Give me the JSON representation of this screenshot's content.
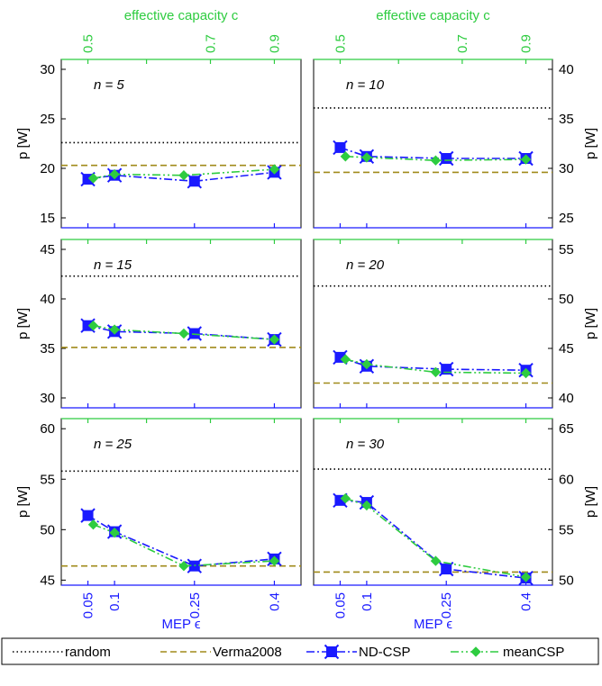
{
  "colors": {
    "axis_blue": "#1a1aff",
    "axis_green": "#2ecc40",
    "random": "#000000",
    "verma": "#a08a1a",
    "ndcsp": "#1a1aff",
    "meancsp": "#2ecc40"
  },
  "top_axis_label_left": "effective capacity c",
  "top_axis_label_right": "effective capacity c",
  "bottom_axis_label_left": "MEP ϵ",
  "bottom_axis_label_right": "MEP ϵ",
  "y_axis_label": "p [W]",
  "legend": [
    {
      "name": "random",
      "key": "random",
      "style": "dotted"
    },
    {
      "name": "Verma2008",
      "key": "verma",
      "style": "dashed"
    },
    {
      "name": "ND-CSP",
      "key": "ndcsp",
      "style": "dashdot-square"
    },
    {
      "name": "meanCSP",
      "key": "meancsp",
      "style": "dashdotdot-diamond"
    }
  ],
  "chart_data": [
    {
      "title": "n = 5",
      "ylim": [
        14,
        31
      ],
      "yticks": [
        15,
        20,
        25,
        30
      ],
      "random": 22.6,
      "verma": 20.3,
      "series": [
        {
          "name": "ND-CSP",
          "x": [
            0.05,
            0.1,
            0.25,
            0.4
          ],
          "y": [
            18.9,
            19.3,
            18.7,
            19.6
          ]
        },
        {
          "name": "meanCSP",
          "x": [
            0.06,
            0.1,
            0.23,
            0.4
          ],
          "y": [
            19.0,
            19.4,
            19.3,
            19.9
          ]
        }
      ]
    },
    {
      "title": "n = 10",
      "ylim": [
        24,
        41
      ],
      "yticks": [
        25,
        30,
        35,
        40
      ],
      "random": 36.1,
      "verma": 29.6,
      "series": [
        {
          "name": "ND-CSP",
          "x": [
            0.05,
            0.1,
            0.25,
            0.4
          ],
          "y": [
            32.1,
            31.2,
            31.0,
            31.0
          ]
        },
        {
          "name": "meanCSP",
          "x": [
            0.06,
            0.1,
            0.23,
            0.4
          ],
          "y": [
            31.2,
            31.1,
            30.8,
            30.9
          ]
        }
      ]
    },
    {
      "title": "n = 15",
      "ylim": [
        29,
        46
      ],
      "yticks": [
        30,
        35,
        40,
        45
      ],
      "random": 42.3,
      "verma": 35.1,
      "series": [
        {
          "name": "ND-CSP",
          "x": [
            0.05,
            0.1,
            0.25,
            0.4
          ],
          "y": [
            37.3,
            36.7,
            36.5,
            35.9
          ]
        },
        {
          "name": "meanCSP",
          "x": [
            0.06,
            0.1,
            0.23,
            0.4
          ],
          "y": [
            37.3,
            36.9,
            36.5,
            35.9
          ]
        }
      ]
    },
    {
      "title": "n = 20",
      "ylim": [
        39,
        56
      ],
      "yticks": [
        40,
        45,
        50,
        55
      ],
      "random": 51.3,
      "verma": 41.5,
      "series": [
        {
          "name": "ND-CSP",
          "x": [
            0.05,
            0.1,
            0.25,
            0.4
          ],
          "y": [
            44.1,
            43.2,
            42.9,
            42.8
          ]
        },
        {
          "name": "meanCSP",
          "x": [
            0.06,
            0.1,
            0.23,
            0.4
          ],
          "y": [
            43.9,
            43.4,
            42.6,
            42.5
          ]
        }
      ]
    },
    {
      "title": "n = 25",
      "ylim": [
        44.5,
        61
      ],
      "yticks": [
        45,
        50,
        55,
        60
      ],
      "random": 55.8,
      "verma": 46.4,
      "series": [
        {
          "name": "ND-CSP",
          "x": [
            0.05,
            0.1,
            0.25,
            0.4
          ],
          "y": [
            51.4,
            49.8,
            46.4,
            47.1
          ]
        },
        {
          "name": "meanCSP",
          "x": [
            0.06,
            0.1,
            0.23,
            0.4
          ],
          "y": [
            50.5,
            49.7,
            46.4,
            46.9
          ]
        }
      ]
    },
    {
      "title": "n = 30",
      "ylim": [
        49.5,
        66
      ],
      "yticks": [
        50,
        55,
        60,
        65
      ],
      "random": 61.0,
      "verma": 50.8,
      "series": [
        {
          "name": "ND-CSP",
          "x": [
            0.05,
            0.1,
            0.25,
            0.4
          ],
          "y": [
            57.9,
            57.7,
            51.1,
            50.2
          ]
        },
        {
          "name": "meanCSP",
          "x": [
            0.06,
            0.1,
            0.23,
            0.4
          ],
          "y": [
            58.1,
            57.4,
            51.9,
            50.3
          ]
        }
      ]
    }
  ],
  "x_axis": {
    "lim": [
      0,
      0.45
    ],
    "bottom_ticks": [
      0.05,
      0.1,
      0.25,
      0.4
    ],
    "bottom_tick_labels": [
      "0.05",
      "0.1",
      "0.25",
      "0.4"
    ],
    "top_ticks": [
      0.05,
      0.16,
      0.28,
      0.4
    ],
    "top_tick_labels": [
      "0.5",
      "0.7",
      "0.9"
    ],
    "top_label_ticks": [
      0.05,
      0.28,
      0.4
    ]
  }
}
